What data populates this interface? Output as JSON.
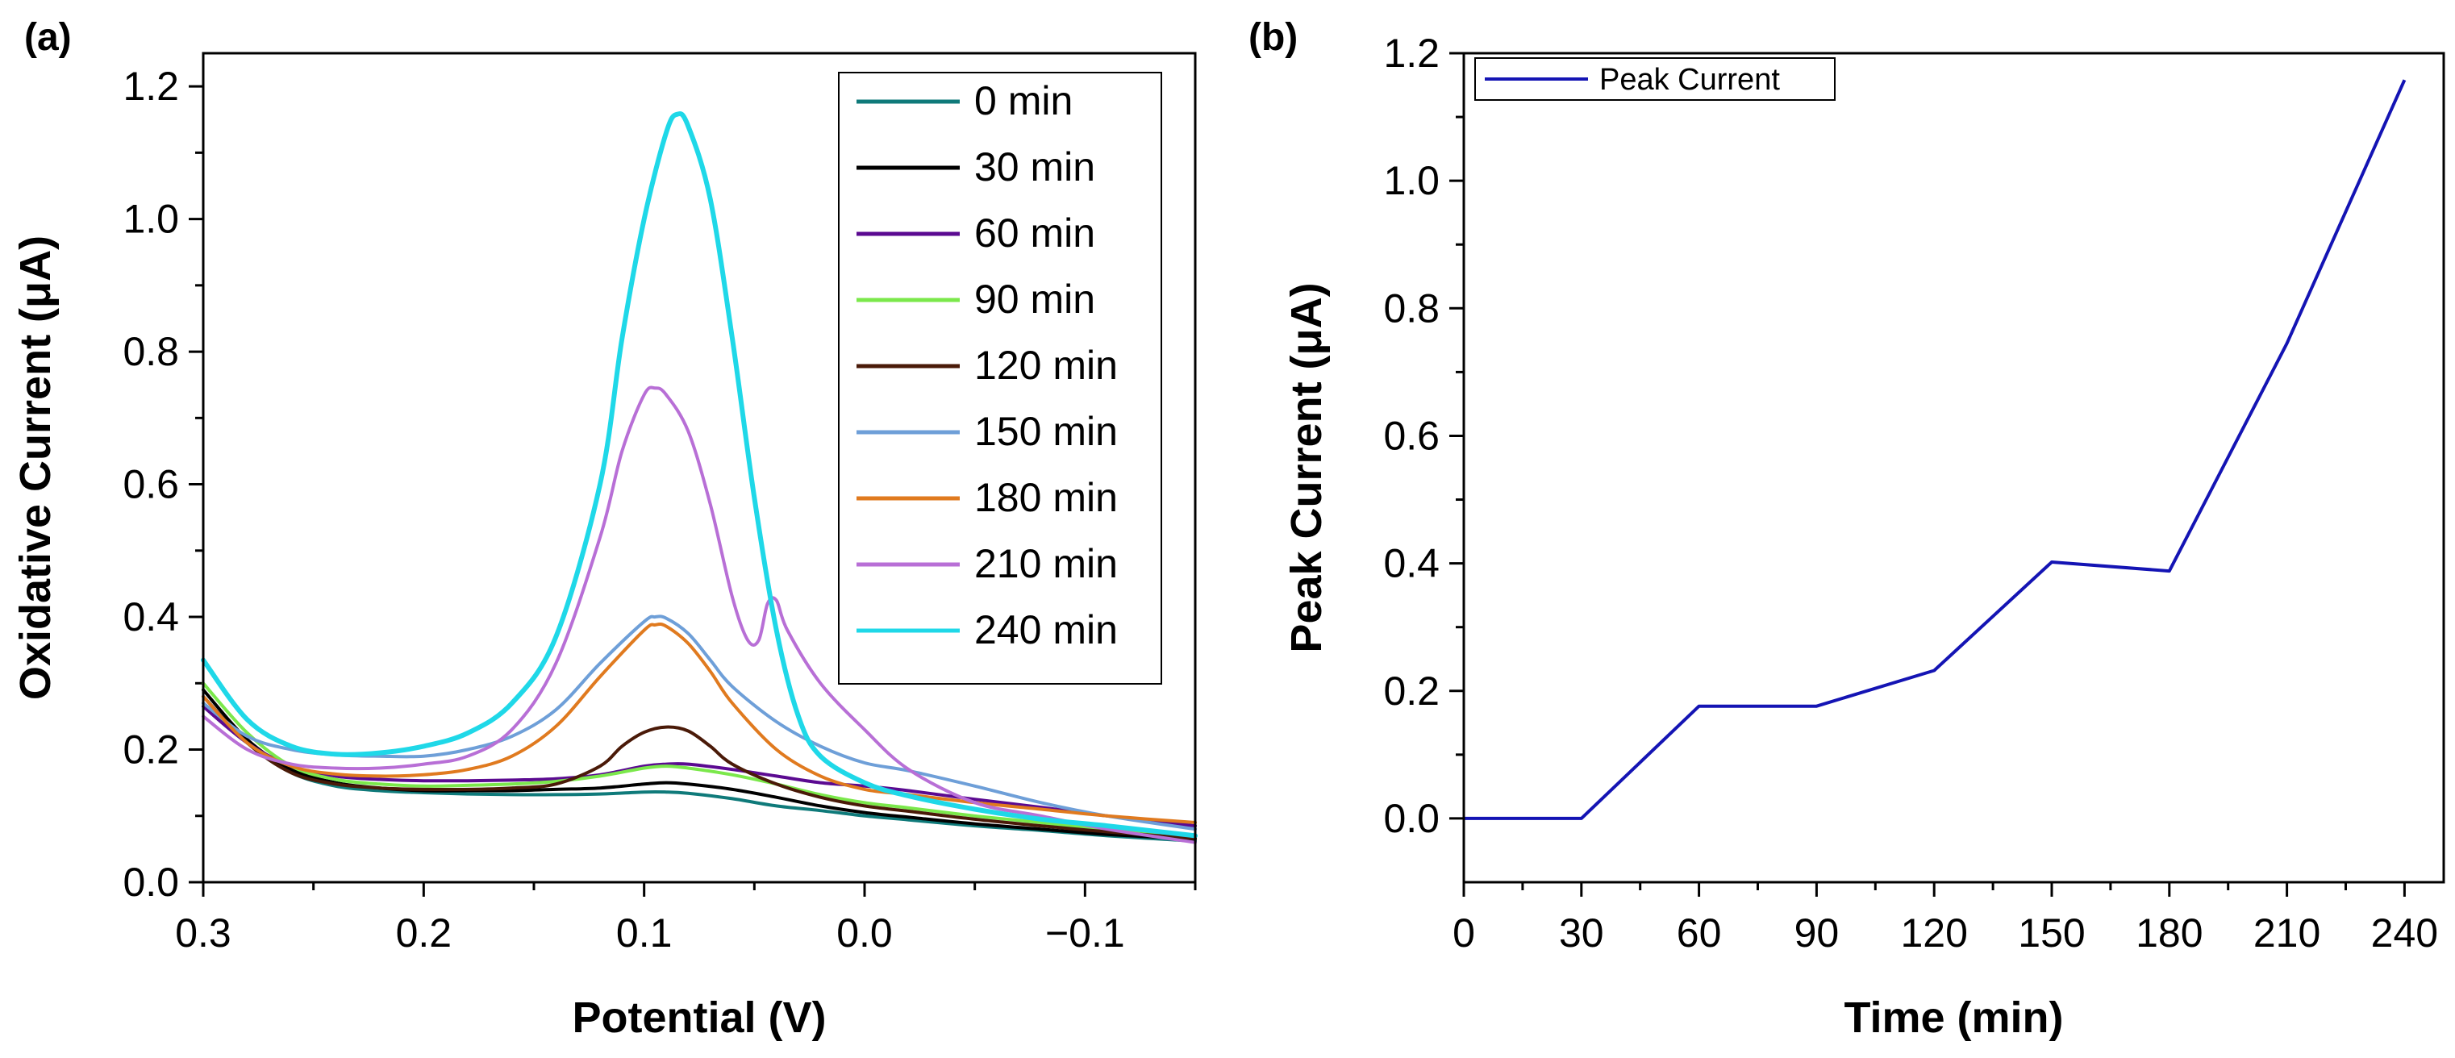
{
  "chart_data": [
    {
      "panel_label": "(a)",
      "type": "line",
      "xlabel": "Potential (V)",
      "ylabel": "Oxidative Current (μA)",
      "xlim": [
        0.3,
        -0.15
      ],
      "ylim": [
        0.0,
        1.25
      ],
      "xticks": [
        0.3,
        0.2,
        0.1,
        0.0,
        -0.1
      ],
      "xtick_labels": [
        "0.3",
        "0.2",
        "0.1",
        "0.0",
        "−0.1"
      ],
      "yticks": [
        0.0,
        0.2,
        0.4,
        0.6,
        0.8,
        1.0,
        1.2
      ],
      "ytick_labels": [
        "0.0",
        "0.2",
        "0.4",
        "0.6",
        "0.8",
        "1.0",
        "1.2"
      ],
      "legend_position": "top-right",
      "series": [
        {
          "name": "0 min",
          "color": "#0f7a7a",
          "points": [
            [
              0.3,
              0.27
            ],
            [
              0.28,
              0.21
            ],
            [
              0.26,
              0.165
            ],
            [
              0.24,
              0.145
            ],
            [
              0.22,
              0.138
            ],
            [
              0.2,
              0.135
            ],
            [
              0.18,
              0.133
            ],
            [
              0.16,
              0.132
            ],
            [
              0.14,
              0.132
            ],
            [
              0.12,
              0.133
            ],
            [
              0.1,
              0.136
            ],
            [
              0.09,
              0.136
            ],
            [
              0.08,
              0.134
            ],
            [
              0.06,
              0.126
            ],
            [
              0.04,
              0.115
            ],
            [
              0.02,
              0.108
            ],
            [
              0.0,
              0.1
            ],
            [
              -0.02,
              0.094
            ],
            [
              -0.05,
              0.085
            ],
            [
              -0.08,
              0.078
            ],
            [
              -0.11,
              0.07
            ],
            [
              -0.15,
              0.062
            ]
          ]
        },
        {
          "name": "30 min",
          "color": "#000000",
          "points": [
            [
              0.3,
              0.29
            ],
            [
              0.28,
              0.215
            ],
            [
              0.26,
              0.17
            ],
            [
              0.24,
              0.15
            ],
            [
              0.22,
              0.142
            ],
            [
              0.2,
              0.138
            ],
            [
              0.18,
              0.138
            ],
            [
              0.16,
              0.138
            ],
            [
              0.14,
              0.14
            ],
            [
              0.12,
              0.142
            ],
            [
              0.1,
              0.148
            ],
            [
              0.09,
              0.15
            ],
            [
              0.08,
              0.148
            ],
            [
              0.06,
              0.14
            ],
            [
              0.04,
              0.128
            ],
            [
              0.02,
              0.115
            ],
            [
              0.0,
              0.105
            ],
            [
              -0.02,
              0.098
            ],
            [
              -0.05,
              0.088
            ],
            [
              -0.08,
              0.08
            ],
            [
              -0.11,
              0.072
            ],
            [
              -0.15,
              0.065
            ]
          ]
        },
        {
          "name": "60 min",
          "color": "#5b0a91",
          "points": [
            [
              0.3,
              0.265
            ],
            [
              0.28,
              0.21
            ],
            [
              0.26,
              0.175
            ],
            [
              0.24,
              0.16
            ],
            [
              0.22,
              0.155
            ],
            [
              0.2,
              0.153
            ],
            [
              0.18,
              0.153
            ],
            [
              0.16,
              0.154
            ],
            [
              0.14,
              0.156
            ],
            [
              0.12,
              0.162
            ],
            [
              0.1,
              0.175
            ],
            [
              0.09,
              0.178
            ],
            [
              0.08,
              0.178
            ],
            [
              0.06,
              0.17
            ],
            [
              0.04,
              0.16
            ],
            [
              0.02,
              0.15
            ],
            [
              0.0,
              0.145
            ],
            [
              -0.02,
              0.138
            ],
            [
              -0.05,
              0.125
            ],
            [
              -0.08,
              0.113
            ],
            [
              -0.11,
              0.1
            ],
            [
              -0.15,
              0.085
            ]
          ]
        },
        {
          "name": "90 min",
          "color": "#7be84b",
          "points": [
            [
              0.3,
              0.3
            ],
            [
              0.28,
              0.225
            ],
            [
              0.26,
              0.175
            ],
            [
              0.24,
              0.155
            ],
            [
              0.22,
              0.148
            ],
            [
              0.2,
              0.145
            ],
            [
              0.18,
              0.146
            ],
            [
              0.16,
              0.148
            ],
            [
              0.14,
              0.152
            ],
            [
              0.12,
              0.16
            ],
            [
              0.1,
              0.172
            ],
            [
              0.09,
              0.175
            ],
            [
              0.08,
              0.172
            ],
            [
              0.06,
              0.162
            ],
            [
              0.04,
              0.148
            ],
            [
              0.02,
              0.132
            ],
            [
              0.0,
              0.12
            ],
            [
              -0.02,
              0.112
            ],
            [
              -0.05,
              0.1
            ],
            [
              -0.08,
              0.09
            ],
            [
              -0.11,
              0.08
            ],
            [
              -0.15,
              0.07
            ]
          ]
        },
        {
          "name": "120 min",
          "color": "#4a1a08",
          "points": [
            [
              0.3,
              0.28
            ],
            [
              0.28,
              0.21
            ],
            [
              0.26,
              0.165
            ],
            [
              0.24,
              0.148
            ],
            [
              0.22,
              0.142
            ],
            [
              0.2,
              0.14
            ],
            [
              0.18,
              0.14
            ],
            [
              0.16,
              0.142
            ],
            [
              0.14,
              0.148
            ],
            [
              0.12,
              0.175
            ],
            [
              0.11,
              0.205
            ],
            [
              0.1,
              0.226
            ],
            [
              0.09,
              0.234
            ],
            [
              0.08,
              0.228
            ],
            [
              0.07,
              0.205
            ],
            [
              0.06,
              0.178
            ],
            [
              0.04,
              0.148
            ],
            [
              0.02,
              0.128
            ],
            [
              0.0,
              0.115
            ],
            [
              -0.02,
              0.107
            ],
            [
              -0.05,
              0.095
            ],
            [
              -0.08,
              0.085
            ],
            [
              -0.11,
              0.076
            ],
            [
              -0.15,
              0.066
            ]
          ]
        },
        {
          "name": "150 min",
          "color": "#6e9fd8",
          "points": [
            [
              0.3,
              0.27
            ],
            [
              0.28,
              0.22
            ],
            [
              0.26,
              0.2
            ],
            [
              0.24,
              0.192
            ],
            [
              0.22,
              0.19
            ],
            [
              0.2,
              0.19
            ],
            [
              0.18,
              0.2
            ],
            [
              0.16,
              0.22
            ],
            [
              0.14,
              0.26
            ],
            [
              0.12,
              0.33
            ],
            [
              0.1,
              0.393
            ],
            [
              0.095,
              0.4
            ],
            [
              0.09,
              0.398
            ],
            [
              0.08,
              0.375
            ],
            [
              0.07,
              0.335
            ],
            [
              0.06,
              0.295
            ],
            [
              0.04,
              0.242
            ],
            [
              0.02,
              0.205
            ],
            [
              0.0,
              0.18
            ],
            [
              -0.02,
              0.168
            ],
            [
              -0.05,
              0.145
            ],
            [
              -0.08,
              0.12
            ],
            [
              -0.11,
              0.1
            ],
            [
              -0.15,
              0.08
            ]
          ]
        },
        {
          "name": "180 min",
          "color": "#e07a1f",
          "points": [
            [
              0.3,
              0.28
            ],
            [
              0.28,
              0.21
            ],
            [
              0.26,
              0.175
            ],
            [
              0.24,
              0.163
            ],
            [
              0.22,
              0.16
            ],
            [
              0.2,
              0.162
            ],
            [
              0.18,
              0.17
            ],
            [
              0.16,
              0.19
            ],
            [
              0.14,
              0.235
            ],
            [
              0.12,
              0.31
            ],
            [
              0.1,
              0.38
            ],
            [
              0.095,
              0.388
            ],
            [
              0.09,
              0.386
            ],
            [
              0.08,
              0.36
            ],
            [
              0.07,
              0.318
            ],
            [
              0.06,
              0.27
            ],
            [
              0.04,
              0.2
            ],
            [
              0.02,
              0.16
            ],
            [
              0.0,
              0.14
            ],
            [
              -0.02,
              0.132
            ],
            [
              -0.05,
              0.12
            ],
            [
              -0.08,
              0.11
            ],
            [
              -0.11,
              0.1
            ],
            [
              -0.15,
              0.09
            ]
          ]
        },
        {
          "name": "210 min",
          "color": "#b86fd6",
          "points": [
            [
              0.3,
              0.25
            ],
            [
              0.28,
              0.2
            ],
            [
              0.26,
              0.178
            ],
            [
              0.24,
              0.172
            ],
            [
              0.22,
              0.172
            ],
            [
              0.2,
              0.178
            ],
            [
              0.18,
              0.19
            ],
            [
              0.16,
              0.23
            ],
            [
              0.14,
              0.33
            ],
            [
              0.12,
              0.52
            ],
            [
              0.11,
              0.65
            ],
            [
              0.1,
              0.735
            ],
            [
              0.095,
              0.745
            ],
            [
              0.09,
              0.735
            ],
            [
              0.08,
              0.68
            ],
            [
              0.07,
              0.57
            ],
            [
              0.06,
              0.43
            ],
            [
              0.053,
              0.365
            ],
            [
              0.048,
              0.365
            ],
            [
              0.044,
              0.42
            ],
            [
              0.04,
              0.425
            ],
            [
              0.035,
              0.38
            ],
            [
              0.02,
              0.3
            ],
            [
              0.0,
              0.23
            ],
            [
              -0.02,
              0.17
            ],
            [
              -0.05,
              0.12
            ],
            [
              -0.08,
              0.1
            ],
            [
              -0.11,
              0.08
            ],
            [
              -0.15,
              0.06
            ]
          ]
        },
        {
          "name": "240 min",
          "color": "#1fd8e8",
          "points": [
            [
              0.3,
              0.335
            ],
            [
              0.28,
              0.245
            ],
            [
              0.26,
              0.205
            ],
            [
              0.24,
              0.193
            ],
            [
              0.22,
              0.195
            ],
            [
              0.2,
              0.205
            ],
            [
              0.18,
              0.225
            ],
            [
              0.16,
              0.27
            ],
            [
              0.14,
              0.37
            ],
            [
              0.12,
              0.6
            ],
            [
              0.11,
              0.82
            ],
            [
              0.1,
              1.0
            ],
            [
              0.09,
              1.13
            ],
            [
              0.085,
              1.158
            ],
            [
              0.08,
              1.14
            ],
            [
              0.07,
              1.03
            ],
            [
              0.06,
              0.82
            ],
            [
              0.05,
              0.58
            ],
            [
              0.04,
              0.38
            ],
            [
              0.03,
              0.25
            ],
            [
              0.02,
              0.19
            ],
            [
              0.0,
              0.15
            ],
            [
              -0.02,
              0.13
            ],
            [
              -0.05,
              0.11
            ],
            [
              -0.08,
              0.095
            ],
            [
              -0.11,
              0.085
            ],
            [
              -0.15,
              0.07
            ]
          ]
        }
      ]
    },
    {
      "panel_label": "(b)",
      "type": "line",
      "xlabel": "Time (min)",
      "ylabel": "Peak Current (μA)",
      "xlim": [
        0,
        250
      ],
      "ylim": [
        -0.1,
        1.2
      ],
      "xticks": [
        0,
        30,
        60,
        90,
        120,
        150,
        180,
        210,
        240
      ],
      "xtick_labels": [
        "0",
        "30",
        "60",
        "90",
        "120",
        "150",
        "180",
        "210",
        "240"
      ],
      "yticks": [
        0.0,
        0.2,
        0.4,
        0.6,
        0.8,
        1.0,
        1.2
      ],
      "ytick_labels": [
        "0.0",
        "0.2",
        "0.4",
        "0.6",
        "0.8",
        "1.0",
        "1.2"
      ],
      "legend_position": "top-left",
      "series": [
        {
          "name": "Peak Current",
          "color": "#1414b4",
          "x": [
            0,
            30,
            60,
            90,
            120,
            150,
            180,
            210,
            240
          ],
          "values": [
            0.0,
            0.0,
            0.176,
            0.176,
            0.232,
            0.402,
            0.388,
            0.745,
            1.158
          ]
        }
      ]
    }
  ]
}
